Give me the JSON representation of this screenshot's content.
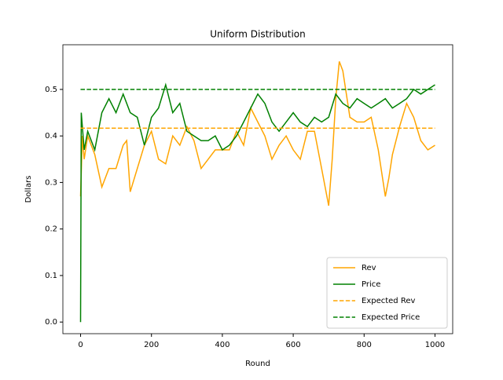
{
  "chart_data": {
    "type": "line",
    "title": "Uniform Distribution",
    "x_label": "Round",
    "y_label": "Dollars",
    "xlim": [
      -50,
      1050
    ],
    "ylim": [
      -0.025,
      0.596
    ],
    "xticks": [
      0,
      200,
      400,
      600,
      800,
      1000
    ],
    "yticks": [
      {
        "value": 0,
        "label": "0.0"
      },
      0.1,
      0.2,
      0.3,
      0.4,
      0.5
    ],
    "legend": "lower right",
    "series": [
      {
        "name": "Rev",
        "color": "#ffa500",
        "dashed": false,
        "x": [
          0,
          5,
          10,
          20,
          40,
          60,
          80,
          100,
          120,
          130,
          140,
          160,
          180,
          200,
          220,
          240,
          260,
          280,
          300,
          320,
          340,
          360,
          380,
          400,
          420,
          440,
          460,
          480,
          500,
          520,
          540,
          560,
          580,
          600,
          620,
          640,
          660,
          680,
          700,
          710,
          720,
          730,
          740,
          760,
          780,
          800,
          820,
          840,
          850,
          860,
          870,
          880,
          900,
          920,
          940,
          960,
          980,
          1000
        ],
        "values": [
          0.27,
          0.4,
          0.35,
          0.4,
          0.36,
          0.29,
          0.33,
          0.33,
          0.38,
          0.39,
          0.28,
          0.33,
          0.38,
          0.41,
          0.35,
          0.34,
          0.4,
          0.38,
          0.42,
          0.39,
          0.33,
          0.35,
          0.37,
          0.37,
          0.37,
          0.41,
          0.38,
          0.46,
          0.43,
          0.4,
          0.35,
          0.38,
          0.4,
          0.37,
          0.35,
          0.41,
          0.41,
          0.33,
          0.25,
          0.35,
          0.48,
          0.56,
          0.54,
          0.44,
          0.43,
          0.43,
          0.44,
          0.37,
          0.32,
          0.27,
          0.31,
          0.36,
          0.42,
          0.47,
          0.44,
          0.39,
          0.37,
          0.38
        ]
      },
      {
        "name": "Price",
        "color": "#008000",
        "dashed": false,
        "x": [
          0,
          2,
          10,
          20,
          40,
          60,
          80,
          100,
          120,
          140,
          160,
          180,
          200,
          220,
          240,
          260,
          280,
          300,
          320,
          340,
          360,
          380,
          400,
          420,
          440,
          460,
          480,
          500,
          520,
          540,
          560,
          580,
          600,
          620,
          640,
          660,
          680,
          700,
          720,
          740,
          760,
          780,
          800,
          820,
          840,
          860,
          880,
          900,
          920,
          940,
          960,
          980,
          1000
        ],
        "values": [
          0.0,
          0.45,
          0.37,
          0.41,
          0.37,
          0.45,
          0.48,
          0.45,
          0.49,
          0.45,
          0.44,
          0.38,
          0.44,
          0.46,
          0.51,
          0.45,
          0.47,
          0.41,
          0.4,
          0.39,
          0.39,
          0.4,
          0.37,
          0.38,
          0.4,
          0.43,
          0.46,
          0.49,
          0.47,
          0.43,
          0.41,
          0.43,
          0.45,
          0.43,
          0.42,
          0.44,
          0.43,
          0.44,
          0.49,
          0.47,
          0.46,
          0.48,
          0.47,
          0.46,
          0.47,
          0.48,
          0.46,
          0.47,
          0.48,
          0.5,
          0.49,
          0.5,
          0.51
        ]
      },
      {
        "name": "Expected Rev",
        "color": "#ffa500",
        "dashed": true,
        "x": [
          0,
          1000
        ],
        "values": [
          0.4167,
          0.4167
        ]
      },
      {
        "name": "Expected Price",
        "color": "#008000",
        "dashed": true,
        "x": [
          0,
          1000
        ],
        "values": [
          0.5,
          0.5
        ]
      }
    ]
  }
}
